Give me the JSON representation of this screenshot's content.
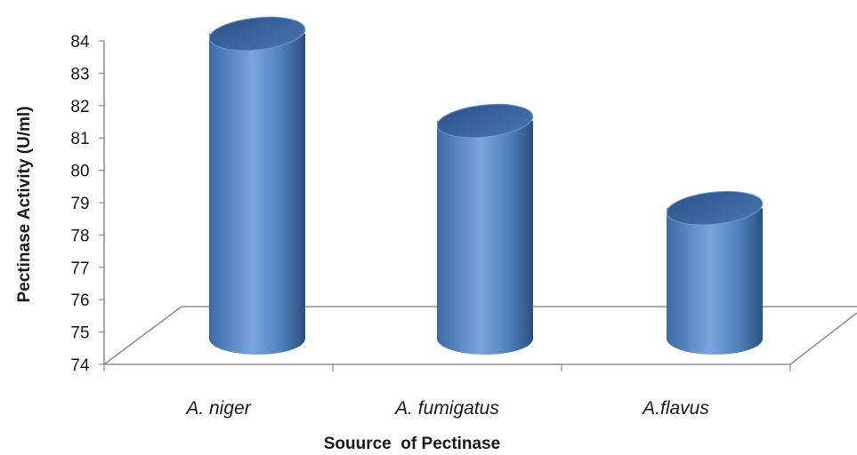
{
  "chart_data": {
    "type": "bar",
    "style": "3d-cylinder",
    "categories": [
      "A. niger",
      "A. fumigatus",
      "A.flavus"
    ],
    "values": [
      84,
      81,
      78
    ],
    "xlabel": "Souurce  of Pectinase",
    "ylabel": "Pectinase Activity (U/ml)",
    "ylim": [
      74,
      84
    ],
    "yticks": [
      74,
      75,
      76,
      77,
      78,
      79,
      80,
      81,
      82,
      83,
      84
    ],
    "grid": false,
    "legend": "none",
    "colors": {
      "bar": "#4f81bd",
      "bar_dark": "#2f5583",
      "bar_light": "#9dbde3",
      "floor": "#7f7f7f"
    }
  }
}
